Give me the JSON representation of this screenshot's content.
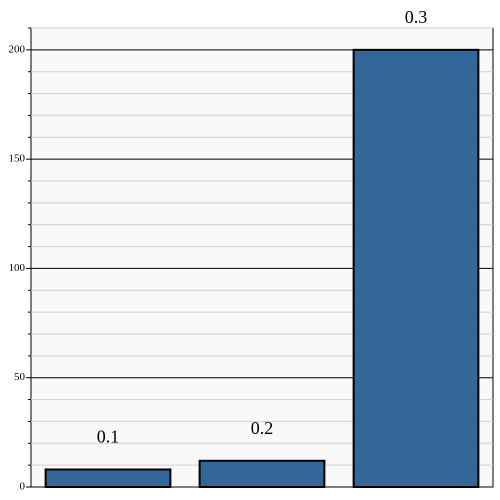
{
  "chart_data": {
    "type": "bar",
    "categories": [
      "0.1",
      "0.2",
      "0.3"
    ],
    "values": [
      8,
      12,
      200
    ],
    "color": "#336699",
    "ylim": [
      0,
      210
    ],
    "yticks": [
      0,
      50,
      100,
      150,
      200
    ],
    "minor_yticks": [
      10,
      20,
      30,
      40,
      60,
      70,
      80,
      90,
      110,
      120,
      130,
      140,
      160,
      170,
      180,
      190,
      210
    ],
    "grid": true
  }
}
